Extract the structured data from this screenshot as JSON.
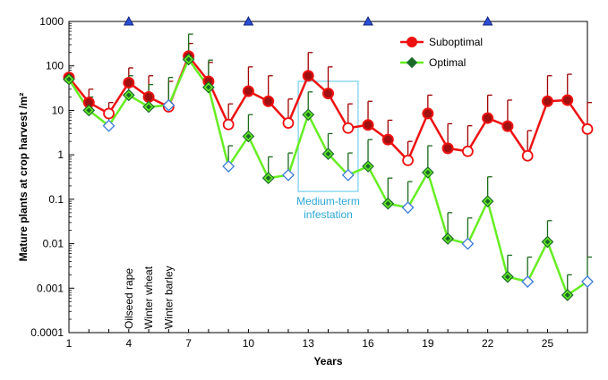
{
  "chart_data": {
    "type": "line",
    "xlabel": "Years",
    "ylabel": "Mature plants at crop harvest /m²",
    "xlim": [
      1,
      27
    ],
    "ylim": [
      0.0001,
      1000
    ],
    "yscale": "log",
    "x_ticks": [
      1,
      4,
      7,
      10,
      13,
      16,
      19,
      22,
      25
    ],
    "y_ticks": [
      {
        "value": 0.0001,
        "label": "0.0001"
      },
      {
        "value": 0.001,
        "label": "0.001"
      },
      {
        "value": 0.01,
        "label": "0.01"
      },
      {
        "value": 0.1,
        "label": "0.1"
      },
      {
        "value": 1,
        "label": "1"
      },
      {
        "value": 10,
        "label": "10"
      },
      {
        "value": 100,
        "label": "100"
      },
      {
        "value": 1000,
        "label": "1000"
      }
    ],
    "grid": false,
    "legend_position": "top-right",
    "top_markers_x": [
      4,
      10,
      16,
      22
    ],
    "crop_labels": [
      {
        "x": 4,
        "text": "Oilseed rape"
      },
      {
        "x": 5,
        "text": "Winter wheat"
      },
      {
        "x": 6,
        "text": "Winter barley"
      }
    ],
    "annotation": {
      "text_line1": "Medium-term",
      "text_line2": "infestation",
      "x_range": [
        12.5,
        15.5
      ],
      "y_range": [
        0.15,
        45
      ]
    },
    "series": [
      {
        "name": "Suboptimal",
        "color": "#ee1111",
        "marker_fill_dark": "#a01010",
        "x": [
          1,
          2,
          3,
          4,
          5,
          6,
          7,
          8,
          9,
          10,
          11,
          12,
          13,
          14,
          15,
          16,
          17,
          18,
          19,
          20,
          21,
          22,
          23,
          24,
          25,
          26,
          27
        ],
        "values": [
          55,
          15,
          8.5,
          42,
          20,
          12,
          165,
          45,
          4.8,
          27,
          16,
          5.2,
          60,
          24,
          4,
          4.7,
          2.2,
          0.75,
          8.5,
          1.4,
          1.2,
          6.7,
          4.4,
          0.95,
          16,
          17,
          3.8
        ],
        "upper": [
          60,
          30,
          15,
          90,
          60,
          45,
          320,
          120,
          14,
          95,
          60,
          18,
          200,
          95,
          14,
          16,
          6,
          2,
          22,
          5,
          4.5,
          22,
          17,
          3.5,
          60,
          65,
          15
        ],
        "filled": [
          true,
          true,
          false,
          true,
          true,
          false,
          true,
          true,
          false,
          true,
          true,
          false,
          true,
          true,
          false,
          true,
          true,
          false,
          true,
          true,
          false,
          true,
          true,
          false,
          true,
          true,
          false
        ]
      },
      {
        "name": "Optimal",
        "color": "#66ee22",
        "marker_fill_dark": "#1a6a2a",
        "x": [
          1,
          2,
          3,
          4,
          5,
          6,
          7,
          8,
          9,
          10,
          11,
          12,
          13,
          14,
          15,
          16,
          17,
          18,
          19,
          20,
          21,
          22,
          23,
          24,
          25,
          26,
          27
        ],
        "values": [
          50,
          10,
          4.5,
          22,
          12,
          13,
          140,
          33,
          0.55,
          2.6,
          0.3,
          0.35,
          8,
          1.05,
          0.35,
          0.55,
          0.08,
          0.065,
          0.4,
          0.013,
          0.01,
          0.09,
          0.0018,
          0.0014,
          0.011,
          0.0007,
          0.0014
        ],
        "upper": [
          55,
          20,
          7,
          60,
          38,
          55,
          520,
          135,
          1.6,
          8,
          0.9,
          1.1,
          26,
          3,
          1.1,
          2.2,
          0.3,
          0.25,
          1.6,
          0.05,
          0.038,
          0.32,
          0.0055,
          0.005,
          0.033,
          0.002,
          0.005
        ],
        "filled": [
          true,
          true,
          false,
          true,
          true,
          false,
          true,
          true,
          false,
          true,
          true,
          false,
          true,
          true,
          false,
          true,
          true,
          false,
          true,
          true,
          false,
          true,
          true,
          false,
          true,
          true,
          false
        ]
      }
    ]
  }
}
